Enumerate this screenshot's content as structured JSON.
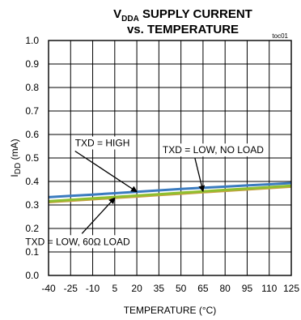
{
  "chart_data": {
    "type": "line",
    "title_main": "V",
    "title_sub": "DDA",
    "title_rest": " SUPPLY CURRENT",
    "title_line2": "vs. TEMPERATURE",
    "figure_id": "toc01",
    "xlabel": "TEMPERATURE (°C)",
    "ylabel_main": "I",
    "ylabel_sub": "DD",
    "ylabel_rest": " (mA)",
    "xlim": [
      -40,
      125
    ],
    "ylim": [
      0.0,
      1.0
    ],
    "x_ticks": [
      "-40",
      "-25",
      "-10",
      "5",
      "20",
      "35",
      "50",
      "65",
      "80",
      "95",
      "110",
      "125"
    ],
    "y_ticks": [
      "0.0",
      "0.1",
      "0.2",
      "0.3",
      "0.4",
      "0.5",
      "0.6",
      "0.7",
      "0.8",
      "0.9",
      "1.0"
    ],
    "grid": true,
    "series": [
      {
        "name": "TXD = HIGH",
        "color": "#3a7bbf",
        "x": [
          -40,
          -25,
          -10,
          5,
          20,
          35,
          50,
          65,
          80,
          95,
          110,
          125
        ],
        "values": [
          0.333,
          0.339,
          0.344,
          0.35,
          0.356,
          0.362,
          0.368,
          0.373,
          0.378,
          0.383,
          0.388,
          0.393
        ]
      },
      {
        "name": "TXD = LOW, NO LOAD",
        "color": "#8fbf2f",
        "x": [
          -40,
          -25,
          -10,
          5,
          20,
          35,
          50,
          65,
          80,
          95,
          110,
          125
        ],
        "values": [
          0.316,
          0.322,
          0.328,
          0.334,
          0.34,
          0.346,
          0.352,
          0.358,
          0.364,
          0.37,
          0.376,
          0.382
        ]
      },
      {
        "name": "TXD = LOW, 60Ω LOAD",
        "color": "#c8a040",
        "x": [
          -40,
          -25,
          -10,
          5,
          20,
          35,
          50,
          65,
          80,
          95,
          110,
          125
        ],
        "values": [
          0.312,
          0.318,
          0.324,
          0.33,
          0.336,
          0.342,
          0.348,
          0.354,
          0.36,
          0.366,
          0.372,
          0.378
        ]
      }
    ],
    "annotations": [
      {
        "text": "TXD = HIGH",
        "x": 0,
        "y": 0.55,
        "arrow_to": [
          20,
          0.356
        ]
      },
      {
        "text": "TXD = LOW, NO LOAD",
        "x": 65,
        "y": 0.52,
        "arrow_to": [
          65,
          0.358
        ]
      },
      {
        "text": "TXD = LOW, 60Ω LOAD",
        "x": -25,
        "y": 0.13,
        "arrow_to": [
          5,
          0.33
        ]
      }
    ]
  }
}
